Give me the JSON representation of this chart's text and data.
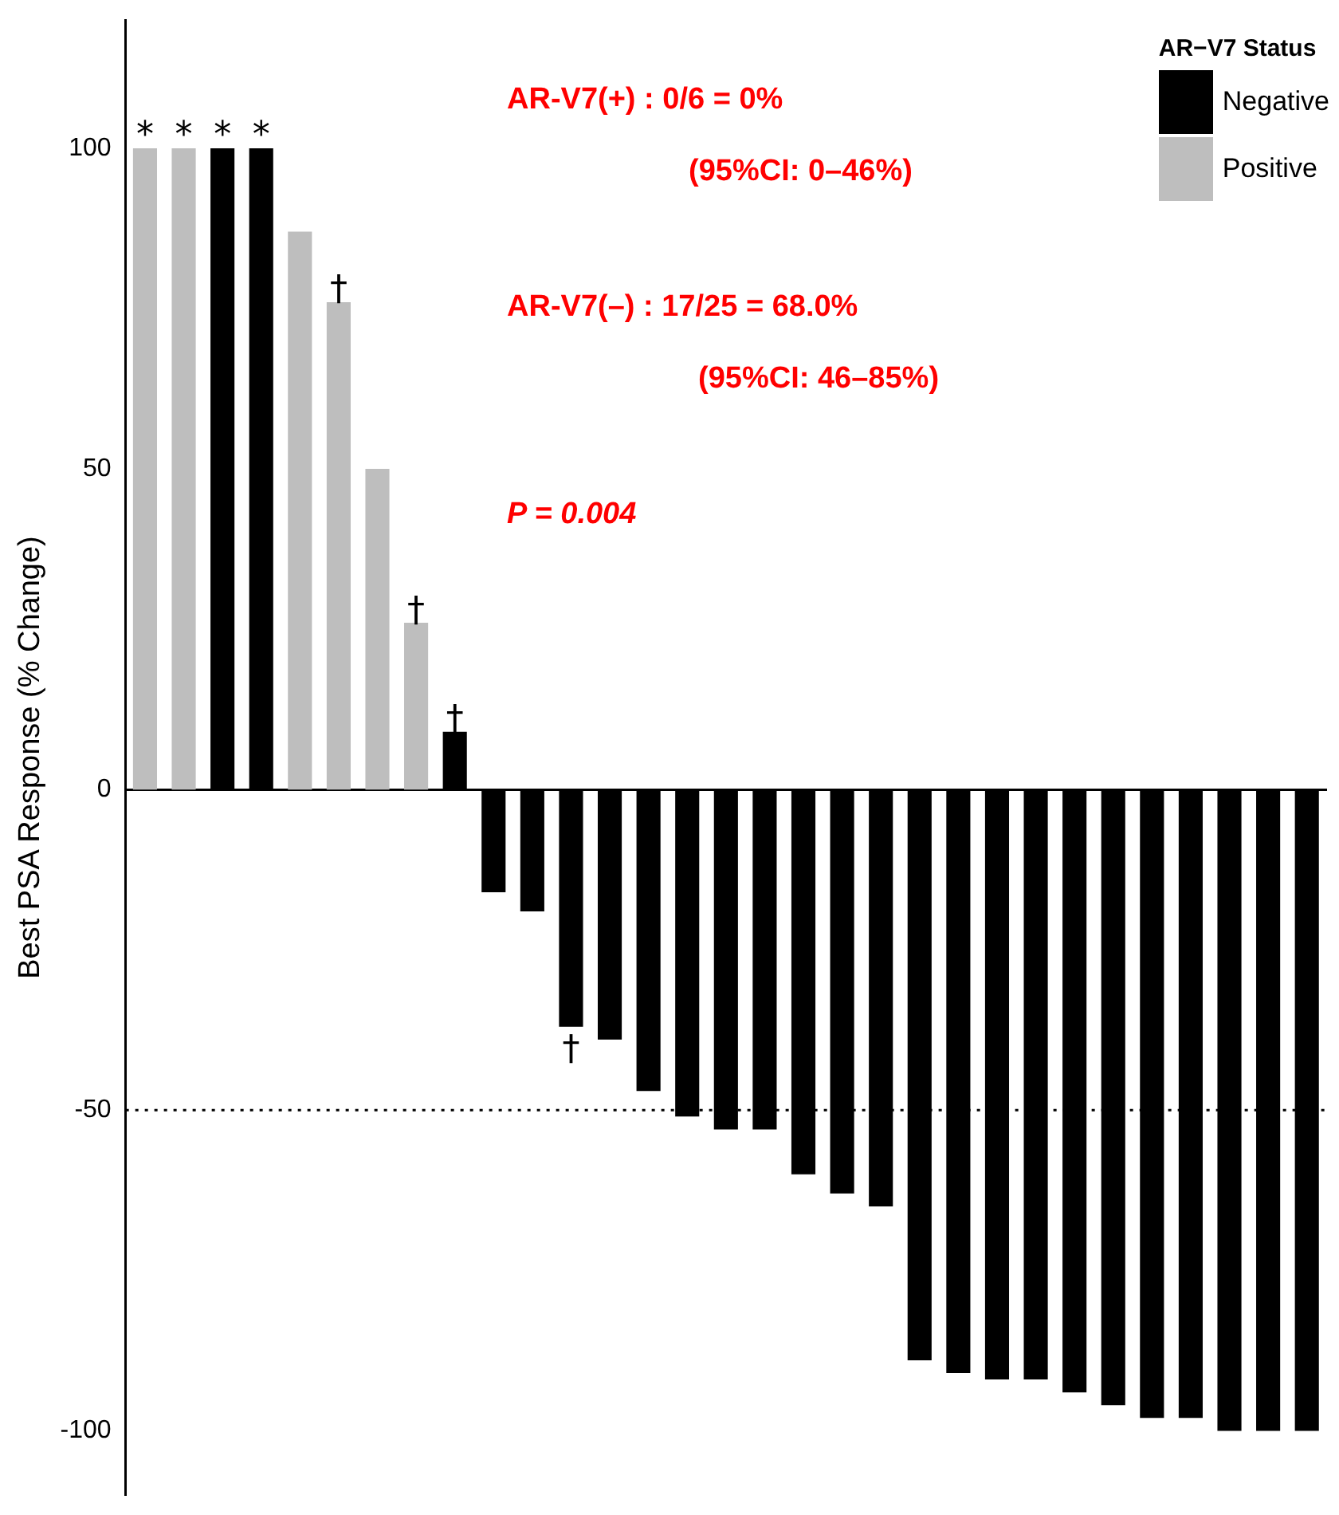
{
  "chart_data": {
    "type": "bar",
    "ylabel": "Best PSA Response (% Change)",
    "legend_title": "AR−V7 Status",
    "legend": "top right",
    "categories": [
      null,
      null,
      null,
      null,
      null,
      null,
      null,
      null,
      null,
      null,
      null,
      null,
      null,
      null,
      null,
      null,
      null,
      null,
      null,
      null,
      null,
      null,
      null,
      null,
      null,
      null,
      null,
      null,
      null,
      null,
      null
    ],
    "series": [
      {
        "name": "Negative",
        "color": "#000000",
        "values": [
          null,
          null,
          100,
          100,
          null,
          null,
          null,
          null,
          9,
          -16,
          -19,
          -37,
          -39,
          -47,
          -51,
          -53,
          -53,
          -60,
          -63,
          -65,
          -89,
          -91,
          -92,
          -92,
          -94,
          -96,
          -98,
          -98,
          -100,
          -100,
          -100
        ],
        "value_labels": [
          null,
          null,
          "*",
          "*",
          null,
          null,
          null,
          null,
          "†",
          null,
          null,
          "†",
          null,
          null,
          null,
          null,
          null,
          null,
          null,
          null,
          null,
          null,
          null,
          null,
          null,
          null,
          null,
          null,
          null,
          null,
          null
        ]
      },
      {
        "name": "Positive",
        "color": "#bebebe",
        "values": [
          100,
          100,
          null,
          null,
          87,
          76,
          50,
          26,
          null,
          null,
          null,
          null,
          null,
          null,
          null,
          null,
          null,
          null,
          null,
          null,
          null,
          null,
          null,
          null,
          null,
          null,
          null,
          null,
          null,
          null,
          null
        ],
        "value_labels": [
          "*",
          "*",
          null,
          null,
          null,
          "†",
          null,
          "†",
          null,
          null,
          null,
          null,
          null,
          null,
          null,
          null,
          null,
          null,
          null,
          null,
          null,
          null,
          null,
          null,
          null,
          null,
          null,
          null,
          null,
          null,
          null
        ]
      }
    ],
    "ylim": [
      -110,
      120
    ],
    "yticks": [
      -100,
      -50,
      0,
      50,
      100
    ],
    "grid": false,
    "tick_labels": "y",
    "ref_lines": [
      {
        "axis": "y",
        "value": -50,
        "line_style": "dotted",
        "color": "#000000"
      }
    ],
    "annotations": [
      "AR-V7(+) :  0/6 = 0%",
      "(95%CI: 0–46%)",
      "AR-V7(–) :  17/25 = 68.0%",
      "(95%CI: 46–85%)",
      "P = 0.004"
    ]
  }
}
